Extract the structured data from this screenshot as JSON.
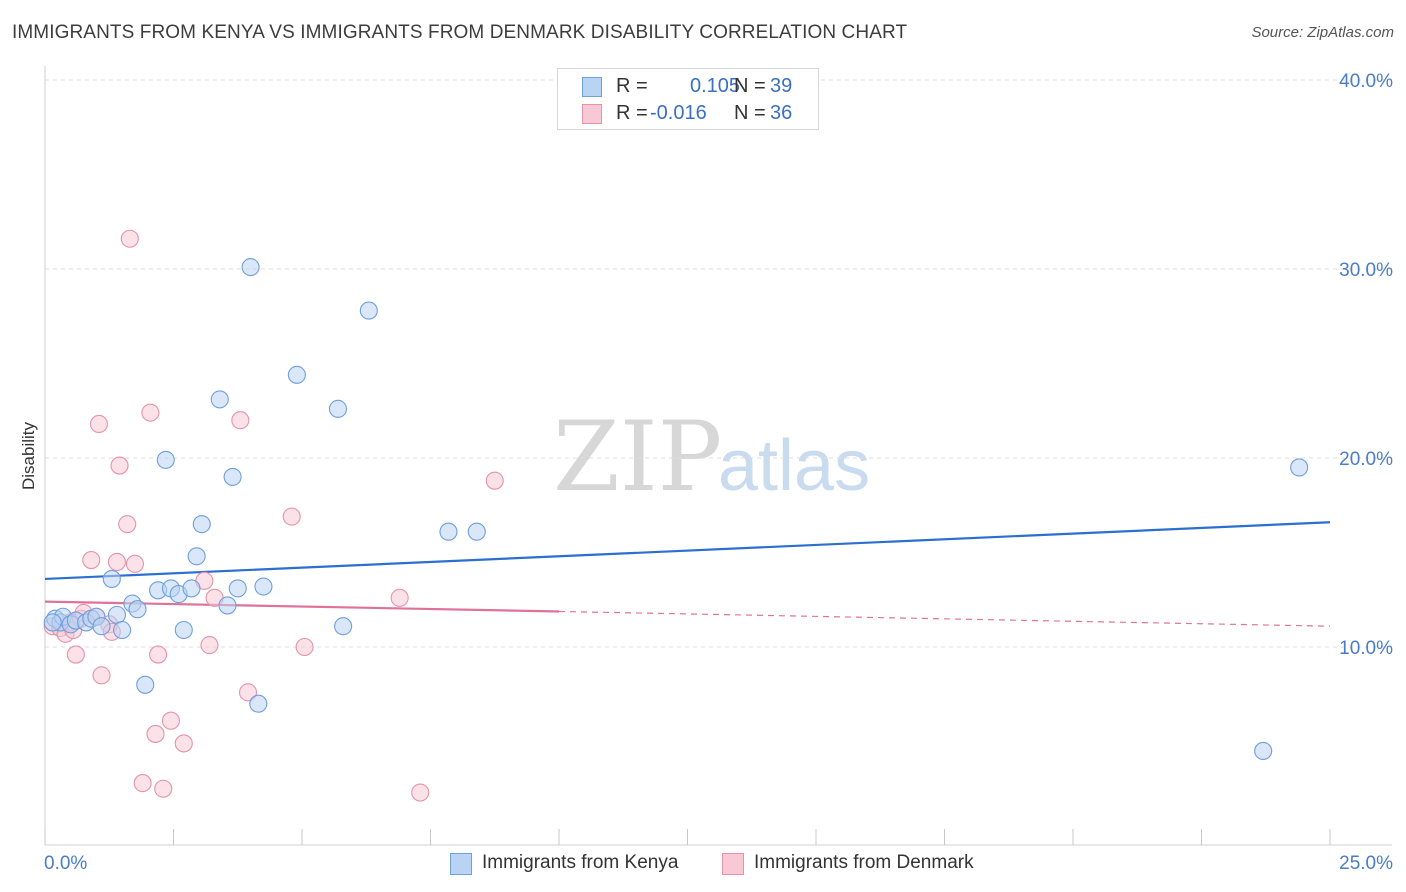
{
  "title": "IMMIGRANTS FROM KENYA VS IMMIGRANTS FROM DENMARK DISABILITY CORRELATION CHART",
  "source": "Source: ZipAtlas.com",
  "watermark": {
    "part1": "ZIP",
    "part2": "atlas"
  },
  "colors": {
    "kenya_fill": "#b9d3f3",
    "kenya_stroke": "#6f9fdc",
    "kenya_line": "#2b6fcf",
    "denmark_fill": "#f8c8d6",
    "denmark_stroke": "#e692ad",
    "denmark_line": "#e0729a",
    "tick_text": "#4a7cc9",
    "grid": "#dcdcdc"
  },
  "legend": {
    "rows": [
      {
        "r_label": "R =",
        "r_value": "0.105",
        "n_label": "N =",
        "n_value": "39"
      },
      {
        "r_label": "R =",
        "r_value": "-0.016",
        "n_label": "N =",
        "n_value": "36"
      }
    ]
  },
  "chart_data": {
    "type": "scatter",
    "title": "IMMIGRANTS FROM KENYA VS IMMIGRANTS FROM DENMARK DISABILITY CORRELATION CHART",
    "xlabel": "",
    "ylabel": "Disability",
    "xlim": [
      0,
      25
    ],
    "ylim": [
      0,
      40
    ],
    "x_tick_labels": [
      "0.0%",
      "25.0%"
    ],
    "y_ticks": [
      10,
      20,
      30,
      40
    ],
    "y_tick_labels": [
      "10.0%",
      "20.0%",
      "30.0%",
      "40.0%"
    ],
    "grid": true,
    "series": [
      {
        "name": "Immigrants from Kenya",
        "r": 0.105,
        "n": 39,
        "trend": {
          "x": [
            0,
            25
          ],
          "y": [
            13.6,
            16.6
          ],
          "solid_until": 25
        },
        "points": [
          {
            "x": 0.2,
            "y": 11.5
          },
          {
            "x": 0.3,
            "y": 11.3
          },
          {
            "x": 0.35,
            "y": 11.6
          },
          {
            "x": 0.5,
            "y": 11.2
          },
          {
            "x": 0.6,
            "y": 11.4
          },
          {
            "x": 0.8,
            "y": 11.3
          },
          {
            "x": 0.9,
            "y": 11.5
          },
          {
            "x": 1.0,
            "y": 11.6
          },
          {
            "x": 1.1,
            "y": 11.1
          },
          {
            "x": 1.3,
            "y": 13.6
          },
          {
            "x": 1.4,
            "y": 11.7
          },
          {
            "x": 1.5,
            "y": 10.9
          },
          {
            "x": 1.7,
            "y": 12.3
          },
          {
            "x": 1.8,
            "y": 12.0
          },
          {
            "x": 1.95,
            "y": 8.0
          },
          {
            "x": 2.2,
            "y": 13.0
          },
          {
            "x": 2.35,
            "y": 19.9
          },
          {
            "x": 2.45,
            "y": 13.1
          },
          {
            "x": 2.6,
            "y": 12.8
          },
          {
            "x": 2.7,
            "y": 10.9
          },
          {
            "x": 2.85,
            "y": 13.1
          },
          {
            "x": 2.95,
            "y": 14.8
          },
          {
            "x": 3.05,
            "y": 16.5
          },
          {
            "x": 3.4,
            "y": 23.1
          },
          {
            "x": 3.55,
            "y": 12.2
          },
          {
            "x": 3.65,
            "y": 19.0
          },
          {
            "x": 3.75,
            "y": 13.1
          },
          {
            "x": 4.0,
            "y": 30.1
          },
          {
            "x": 4.15,
            "y": 7.0
          },
          {
            "x": 4.25,
            "y": 13.2
          },
          {
            "x": 4.9,
            "y": 24.4
          },
          {
            "x": 5.7,
            "y": 22.6
          },
          {
            "x": 5.8,
            "y": 11.1
          },
          {
            "x": 6.3,
            "y": 27.8
          },
          {
            "x": 7.85,
            "y": 16.1
          },
          {
            "x": 8.4,
            "y": 16.1
          },
          {
            "x": 23.7,
            "y": 4.5
          },
          {
            "x": 24.4,
            "y": 19.5
          },
          {
            "x": 0.15,
            "y": 11.3
          }
        ]
      },
      {
        "name": "Immigrants from Denmark",
        "r": -0.016,
        "n": 36,
        "trend": {
          "x": [
            0,
            25
          ],
          "y": [
            12.4,
            11.1
          ],
          "solid_until": 10
        },
        "points": [
          {
            "x": 0.15,
            "y": 11.1
          },
          {
            "x": 0.3,
            "y": 11.0
          },
          {
            "x": 0.4,
            "y": 10.7
          },
          {
            "x": 0.5,
            "y": 11.3
          },
          {
            "x": 0.55,
            "y": 10.9
          },
          {
            "x": 0.6,
            "y": 9.6
          },
          {
            "x": 0.7,
            "y": 11.5
          },
          {
            "x": 0.75,
            "y": 11.8
          },
          {
            "x": 0.9,
            "y": 14.6
          },
          {
            "x": 1.0,
            "y": 11.6
          },
          {
            "x": 1.05,
            "y": 21.8
          },
          {
            "x": 1.1,
            "y": 8.5
          },
          {
            "x": 1.25,
            "y": 11.2
          },
          {
            "x": 1.3,
            "y": 10.8
          },
          {
            "x": 1.4,
            "y": 14.5
          },
          {
            "x": 1.45,
            "y": 19.6
          },
          {
            "x": 1.6,
            "y": 16.5
          },
          {
            "x": 1.65,
            "y": 31.6
          },
          {
            "x": 1.75,
            "y": 14.4
          },
          {
            "x": 1.9,
            "y": 2.8
          },
          {
            "x": 2.05,
            "y": 22.4
          },
          {
            "x": 2.15,
            "y": 5.4
          },
          {
            "x": 2.2,
            "y": 9.6
          },
          {
            "x": 2.3,
            "y": 2.5
          },
          {
            "x": 2.45,
            "y": 6.1
          },
          {
            "x": 2.7,
            "y": 4.9
          },
          {
            "x": 3.1,
            "y": 13.5
          },
          {
            "x": 3.2,
            "y": 10.1
          },
          {
            "x": 3.3,
            "y": 12.6
          },
          {
            "x": 3.8,
            "y": 22.0
          },
          {
            "x": 3.95,
            "y": 7.6
          },
          {
            "x": 4.8,
            "y": 16.9
          },
          {
            "x": 5.05,
            "y": 10.0
          },
          {
            "x": 6.9,
            "y": 12.6
          },
          {
            "x": 7.3,
            "y": 2.3
          },
          {
            "x": 8.75,
            "y": 18.8
          }
        ]
      }
    ]
  }
}
